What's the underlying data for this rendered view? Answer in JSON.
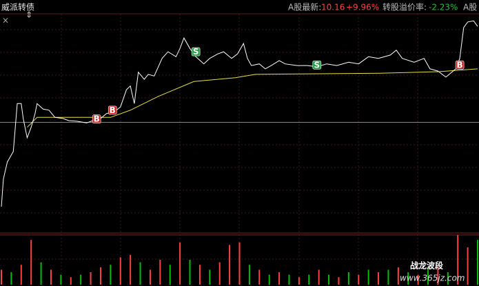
{
  "chart_data": {
    "type": "line",
    "title": "威派转债",
    "quote": {
      "a_price_label": "A股最新:",
      "a_price": 10.16,
      "a_change": {
        "value": 9.96,
        "label": "+9.96%"
      },
      "premium_label": "转股溢价率:",
      "premium": {
        "value": -2.23,
        "label": "-2.23%"
      },
      "right_label": "A股"
    },
    "xlim": [
      0,
      240
    ],
    "ylim": [
      -20,
      20
    ],
    "series": [
      {
        "color": "#ffffff",
        "x": [
          0,
          1,
          3,
          6,
          7,
          8,
          10,
          11,
          13,
          15,
          17,
          18,
          21,
          24,
          27,
          31,
          34,
          38,
          43,
          46,
          50,
          53,
          57,
          60,
          63,
          65,
          67,
          69,
          72,
          74,
          77,
          81,
          84,
          88,
          90,
          92,
          95,
          98,
          102,
          105,
          109,
          112,
          116,
          119,
          122,
          124,
          126,
          130,
          133,
          136,
          140,
          143,
          149,
          154,
          159,
          164,
          169,
          175,
          180,
          185,
          190,
          196,
          199,
          202,
          208,
          213,
          216,
          220,
          224,
          229,
          231,
          233,
          235,
          238,
          240
        ],
        "values": [
          -15.3,
          -10.3,
          -7.2,
          -5.3,
          -0.9,
          3.4,
          3.4,
          0.7,
          -2.8,
          -0.9,
          1.6,
          3.4,
          2.4,
          2.2,
          0.9,
          0.7,
          0.3,
          0.2,
          -0.1,
          0.3,
          0.7,
          1.6,
          1.9,
          2.8,
          5.9,
          6.6,
          3.4,
          9.1,
          7.8,
          8.7,
          8.4,
          11.6,
          12.8,
          11.9,
          13.4,
          15.3,
          13.4,
          11.9,
          10.6,
          11.6,
          12.4,
          12.8,
          11.6,
          12.4,
          14.3,
          11.6,
          10.3,
          10.6,
          9.7,
          10.3,
          11.2,
          10.6,
          10.3,
          10.3,
          10.1,
          10.6,
          10.3,
          10.9,
          10.6,
          11.9,
          11.6,
          12.2,
          13.1,
          11.6,
          10.9,
          11.6,
          9.7,
          9.3,
          8.2,
          9.7,
          11.6,
          17.2,
          18.2,
          18.4,
          17.4
        ]
      },
      {
        "color": "#e8e040",
        "x": [
          13,
          18,
          34,
          55,
          65,
          79,
          97,
          118,
          128,
          156,
          191,
          221,
          240
        ],
        "values": [
          -0.9,
          0.9,
          0.9,
          0.9,
          2.2,
          4.7,
          7.4,
          8.1,
          8.7,
          8.8,
          8.9,
          9.2,
          9.7
        ]
      }
    ],
    "markers": [
      {
        "label": "B",
        "x": 48,
        "y": 0.6,
        "color": "#d02020"
      },
      {
        "label": "B",
        "x": 56,
        "y": 2.2,
        "color": "#d02020"
      },
      {
        "label": "S",
        "x": 98,
        "y": 12.8,
        "color": "#20a040"
      },
      {
        "label": "S",
        "x": 159,
        "y": 10.4,
        "color": "#20a040"
      },
      {
        "label": "B",
        "x": 231,
        "y": 10.4,
        "color": "#d02020"
      }
    ],
    "volume": {
      "ylim": [
        0,
        100
      ],
      "x": [
        0,
        5,
        10,
        15,
        20,
        25,
        30,
        35,
        40,
        45,
        50,
        55,
        60,
        65,
        70,
        75,
        80,
        85,
        90,
        95,
        100,
        105,
        110,
        115,
        120,
        125,
        130,
        135,
        140,
        145,
        150,
        155,
        160,
        165,
        170,
        175,
        180,
        185,
        190,
        195,
        200,
        205,
        210,
        215,
        220,
        225,
        230,
        235,
        240
      ],
      "values": [
        30,
        25,
        40,
        90,
        45,
        30,
        20,
        15,
        20,
        25,
        35,
        40,
        55,
        60,
        45,
        30,
        50,
        40,
        85,
        50,
        40,
        30,
        45,
        80,
        85,
        40,
        30,
        20,
        25,
        20,
        15,
        20,
        30,
        20,
        15,
        25,
        20,
        30,
        25,
        30,
        35,
        25,
        20,
        30,
        35,
        25,
        100,
        75,
        90
      ],
      "colors": [
        "#ff4040",
        "#00c000",
        "#ff4040",
        "#ff4040",
        "#00c000",
        "#ff4040",
        "#00c000",
        "#ff4040",
        "#00c000",
        "#ff4040",
        "#ff4040",
        "#00c000",
        "#ff4040",
        "#ff4040",
        "#00c000",
        "#ff4040",
        "#ff4040",
        "#00c000",
        "#ff4040",
        "#00c000",
        "#ff4040",
        "#00c000",
        "#ff4040",
        "#ff4040",
        "#ff4040",
        "#00c000",
        "#ff4040",
        "#00c000",
        "#ff4040",
        "#00c000",
        "#ff4040",
        "#00c000",
        "#ff4040",
        "#00c000",
        "#ff4040",
        "#00c000",
        "#ff4040",
        "#00c000",
        "#ff4040",
        "#00c000",
        "#ff4040",
        "#00c000",
        "#ff4040",
        "#00c000",
        "#ff4040",
        "#00c000",
        "#ff4040",
        "#ff4040",
        "#00c000"
      ]
    },
    "watermark": {
      "title": "战龙波段",
      "url": "www.365jz.com"
    }
  }
}
